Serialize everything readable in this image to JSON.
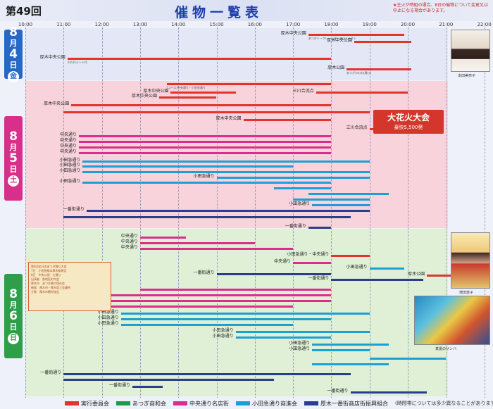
{
  "header": {
    "edition": "第49回",
    "title": "催物一覧表",
    "note": "★主火が時組の場合、8日の催物について変更又は中止になる場合があります。"
  },
  "time_axis": [
    "10:00",
    "11:00",
    "12:00",
    "13:00",
    "14:00",
    "15:00",
    "16:00",
    "17:00",
    "18:00",
    "19:00",
    "20:00",
    "21:00",
    "22:00"
  ],
  "colors": {
    "red": "#e0342c",
    "green": "#1d9b4a",
    "magenta": "#d82f8b",
    "cyan": "#1c9fd2",
    "navy": "#2a3d8f",
    "day1_bg": "#e4e8f6",
    "day2_bg": "#f8d3dc",
    "day3_bg": "#dff0d7"
  },
  "days": [
    {
      "num": "8",
      "unit": "月",
      "day": "4",
      "unit2": "日",
      "weekday": "金",
      "color": "#2768c4",
      "bg": "#e4e8f6"
    },
    {
      "num": "8",
      "unit": "月",
      "day": "5",
      "unit2": "日",
      "weekday": "土",
      "color": "#d8308a",
      "bg": "#f8d3dc"
    },
    {
      "num": "8",
      "unit": "月",
      "day": "6",
      "unit2": "日",
      "weekday": "日",
      "color": "#2f9e4b",
      "bg": "#dff0d7"
    }
  ],
  "rows": [
    {
      "label": "厚木中央公園",
      "note": "あつぎイーグレー・ダンスコンテスト",
      "color": "red",
      "start": 17.4,
      "end": 19.9,
      "y": 48
    },
    {
      "label": "厚木中央公園",
      "note": "",
      "color": "red",
      "start": 18.6,
      "end": 20.1,
      "y": 58
    },
    {
      "label": "厚木中央公園",
      "note": "わわわテント村",
      "color": "red",
      "start": 11.1,
      "end": 18.0,
      "y": 82
    },
    {
      "label": "厚木公園",
      "note": "あつぎわわわ(踊り)",
      "color": "red",
      "start": 18.4,
      "end": 20.1,
      "y": 97
    },
    {
      "label": "",
      "note": "(コース)中央通り・小田急通り",
      "color": "red",
      "start": 13.7,
      "end": 18.0,
      "y": 118
    },
    {
      "label": "厚木中央公園",
      "note": "",
      "color": "red",
      "start": 13.8,
      "end": 15.5,
      "y": 130
    },
    {
      "label": "三川合流点",
      "note": "",
      "color": "red",
      "start": 17.6,
      "end": 20.0,
      "y": 130
    },
    {
      "label": "厚木中央公園",
      "note": "",
      "color": "red",
      "start": 13.5,
      "end": 15.0,
      "y": 137
    },
    {
      "label": "厚木中央公園",
      "note": "",
      "color": "red",
      "start": 11.2,
      "end": 18.0,
      "y": 148
    },
    {
      "label": "",
      "note": "",
      "color": "red",
      "start": 11.0,
      "end": 19.0,
      "y": 158
    },
    {
      "label": "厚木中央公園",
      "note": "",
      "color": "red",
      "start": 15.7,
      "end": 18.0,
      "y": 169
    },
    {
      "label": "三川合流点",
      "note": "",
      "color": "red",
      "start": 19.0,
      "end": 19.8,
      "y": 182
    },
    {
      "label": "中央通り",
      "note": "",
      "color": "magenta",
      "start": 11.4,
      "end": 18.0,
      "y": 192
    },
    {
      "label": "中央通り",
      "note": "",
      "color": "magenta",
      "start": 11.4,
      "end": 18.0,
      "y": 200
    },
    {
      "label": "中央通り",
      "note": "",
      "color": "magenta",
      "start": 11.4,
      "end": 18.0,
      "y": 208
    },
    {
      "label": "中央通り",
      "note": "",
      "color": "magenta",
      "start": 11.4,
      "end": 18.0,
      "y": 216
    },
    {
      "label": "小田急通り",
      "note": "",
      "color": "cyan",
      "start": 11.5,
      "end": 19.0,
      "y": 228
    },
    {
      "label": "小田急通り",
      "note": "",
      "color": "cyan",
      "start": 11.5,
      "end": 17.0,
      "y": 235
    },
    {
      "label": "小田急通り",
      "note": "",
      "color": "cyan",
      "start": 11.5,
      "end": 19.0,
      "y": 243
    },
    {
      "label": "小田急通り",
      "note": "",
      "color": "cyan",
      "start": 15.0,
      "end": 19.0,
      "y": 251
    },
    {
      "label": "小田急通り",
      "note": "",
      "color": "cyan",
      "start": 11.5,
      "end": 18.0,
      "y": 258
    },
    {
      "label": "",
      "note": "",
      "color": "cyan",
      "start": 16.5,
      "end": 18.0,
      "y": 266
    },
    {
      "label": "",
      "note": "",
      "color": "cyan",
      "start": 17.4,
      "end": 19.5,
      "y": 274
    },
    {
      "label": "",
      "note": "",
      "color": "cyan",
      "start": 17.0,
      "end": 19.0,
      "y": 282
    },
    {
      "label": "小田急通り",
      "note": "",
      "color": "cyan",
      "start": 17.5,
      "end": 19.0,
      "y": 290
    },
    {
      "label": "一番街通り",
      "note": "",
      "color": "navy",
      "start": 11.6,
      "end": 19.0,
      "y": 298
    },
    {
      "label": "",
      "note": "",
      "color": "navy",
      "start": 11.0,
      "end": 18.5,
      "y": 307
    },
    {
      "label": "一番街通り",
      "note": "",
      "color": "navy",
      "start": 17.4,
      "end": 18.0,
      "y": 322
    },
    {
      "label": "中央通り",
      "note": "",
      "color": "magenta",
      "start": 13.0,
      "end": 14.2,
      "y": 336
    },
    {
      "label": "中央通り",
      "note": "",
      "color": "magenta",
      "start": 13.0,
      "end": 16.0,
      "y": 344
    },
    {
      "label": "中央通り",
      "note": "",
      "color": "magenta",
      "start": 13.0,
      "end": 17.0,
      "y": 352
    },
    {
      "label": "小田急通り・中央通り",
      "note": "",
      "color": "red",
      "start": 18.0,
      "end": 19.0,
      "y": 362
    },
    {
      "label": "中央通り",
      "note": "",
      "color": "magenta",
      "start": 17.0,
      "end": 18.0,
      "y": 372
    },
    {
      "label": "小田急通り",
      "note": "",
      "color": "cyan",
      "start": 19.0,
      "end": 19.9,
      "y": 380
    },
    {
      "label": "一番街通り",
      "note": "",
      "color": "navy",
      "start": 15.0,
      "end": 18.0,
      "y": 388
    },
    {
      "label": "一番街通り",
      "note": "",
      "color": "navy",
      "start": 18.0,
      "end": 20.4,
      "y": 396
    },
    {
      "label": "厚木公園",
      "note": "",
      "color": "red",
      "start": 20.5,
      "end": 21.7,
      "y": 390
    },
    {
      "label": "",
      "note": "",
      "color": "magenta",
      "start": 13.0,
      "end": 18.0,
      "y": 410
    },
    {
      "label": "中央通り",
      "note": "",
      "color": "magenta",
      "start": 11.3,
      "end": 18.0,
      "y": 418
    },
    {
      "label": "中央通り",
      "note": "",
      "color": "magenta",
      "start": 11.3,
      "end": 18.0,
      "y": 426
    },
    {
      "label": "中央通り",
      "note": "",
      "color": "magenta",
      "start": 11.3,
      "end": 17.0,
      "y": 434
    },
    {
      "label": "小田急通り",
      "note": "",
      "color": "cyan",
      "start": 12.5,
      "end": 19.0,
      "y": 444
    },
    {
      "label": "小田急通り",
      "note": "",
      "color": "cyan",
      "start": 12.5,
      "end": 18.0,
      "y": 452
    },
    {
      "label": "小田急通り",
      "note": "",
      "color": "cyan",
      "start": 12.5,
      "end": 17.0,
      "y": 460
    },
    {
      "label": "小田急通り",
      "note": "",
      "color": "cyan",
      "start": 15.5,
      "end": 19.0,
      "y": 470
    },
    {
      "label": "小田急通り",
      "note": "",
      "color": "cyan",
      "start": 15.5,
      "end": 18.0,
      "y": 478
    },
    {
      "label": "小田急通り",
      "note": "",
      "color": "cyan",
      "start": 17.5,
      "end": 19.5,
      "y": 488
    },
    {
      "label": "小田急通り",
      "note": "",
      "color": "cyan",
      "start": 17.5,
      "end": 19.0,
      "y": 496
    },
    {
      "label": "",
      "note": "",
      "color": "cyan",
      "start": 19.0,
      "end": 21.0,
      "y": 508
    },
    {
      "label": "",
      "note": "",
      "color": "cyan",
      "start": 17.5,
      "end": 19.5,
      "y": 516
    },
    {
      "label": "一番街通り",
      "note": "",
      "color": "navy",
      "start": 11.0,
      "end": 18.5,
      "y": 530
    },
    {
      "label": "",
      "note": "",
      "color": "navy",
      "start": 11.0,
      "end": 16.5,
      "y": 538
    },
    {
      "label": "一番街通り",
      "note": "",
      "color": "navy",
      "start": 12.8,
      "end": 13.6,
      "y": 548
    },
    {
      "label": "一番街通り",
      "note": "",
      "color": "navy",
      "start": 18.5,
      "end": 20.5,
      "y": 556
    }
  ],
  "fireworks": {
    "title": "大花火大会",
    "subtitle": "豪快5,500発"
  },
  "photo_caption_1": "本田美奈子",
  "photo_caption_2": "増田恵子",
  "photo_caption_3": "真夏のサンバ",
  "notice": [
    "第4回全日本あつぎ踊り大会",
    "7日　小田急線本厚木駅周辺",
    "8日　中央公園・大通り",
    "出演者　各地区町内会",
    "厚木市　あつぎ踊り保存会",
    "後援　厚木市・厚木商工会議所",
    "主催　厚木市観光協会"
  ],
  "legend": {
    "items": [
      {
        "label": "実行委員会",
        "color": "red"
      },
      {
        "label": "あつぎ商和会",
        "color": "green"
      },
      {
        "label": "中央通り名店街",
        "color": "magenta"
      },
      {
        "label": "小田急通り商進会",
        "color": "cyan"
      },
      {
        "label": "厚木一番街商店街振興組合",
        "color": "navy"
      }
    ],
    "note": "(時間帯については多少異なることがあります)"
  }
}
